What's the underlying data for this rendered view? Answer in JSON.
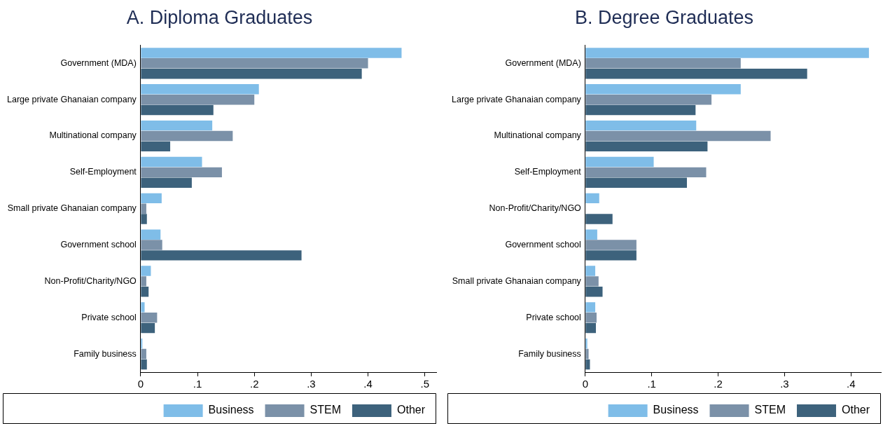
{
  "chart_data": [
    {
      "type": "bar",
      "title": "A. Diploma Graduates",
      "orientation": "horizontal",
      "legend": "bottom",
      "grid": false,
      "categories": [
        "Government (MDA)",
        "Large private Ghanaian company",
        "Multinational company",
        "Self-Employment",
        "Small private Ghanaian company",
        "Government school",
        "Non-Profit/Charity/NGO",
        "Private school",
        "Family business"
      ],
      "series": [
        {
          "name": "Business",
          "color": "#7fbde8",
          "values": [
            0.459,
            0.208,
            0.126,
            0.108,
            0.037,
            0.035,
            0.018,
            0.007,
            0.003
          ]
        },
        {
          "name": "STEM",
          "color": "#7b91a8",
          "values": [
            0.4,
            0.2,
            0.162,
            0.143,
            0.01,
            0.038,
            0.01,
            0.029,
            0.01
          ]
        },
        {
          "name": "Other",
          "color": "#3d627c",
          "values": [
            0.389,
            0.128,
            0.052,
            0.09,
            0.011,
            0.283,
            0.014,
            0.025,
            0.011
          ]
        }
      ],
      "xlim": [
        0,
        0.52
      ],
      "xticks": [
        0,
        {
          "value": 0.1,
          "label": ".1"
        },
        {
          "value": 0.2,
          "label": ".2"
        },
        {
          "value": 0.3,
          "label": ".3"
        },
        {
          "value": 0.4,
          "label": ".4"
        },
        {
          "value": 0.5,
          "label": ".5"
        }
      ]
    },
    {
      "type": "bar",
      "title": "B. Degree Graduates",
      "orientation": "horizontal",
      "legend": "bottom",
      "grid": false,
      "categories": [
        "Government (MDA)",
        "Large private Ghanaian company",
        "Multinational company",
        "Self-Employment",
        "Non-Profit/Charity/NGO",
        "Government school",
        "Small private Ghanaian company",
        "Private school",
        "Family business"
      ],
      "series": [
        {
          "name": "Business",
          "color": "#7fbde8",
          "values": [
            0.427,
            0.234,
            0.167,
            0.103,
            0.021,
            0.018,
            0.015,
            0.015,
            0.003
          ]
        },
        {
          "name": "STEM",
          "color": "#7b91a8",
          "values": [
            0.234,
            0.19,
            0.279,
            0.182,
            0,
            0.077,
            0.02,
            0.017,
            0.005
          ]
        },
        {
          "name": "Other",
          "color": "#3d627c",
          "values": [
            0.334,
            0.166,
            0.184,
            0.153,
            0.041,
            0.077,
            0.026,
            0.016,
            0.007
          ]
        }
      ],
      "xlim": [
        0,
        0.445
      ],
      "xticks": [
        0,
        {
          "value": 0.1,
          "label": ".1"
        },
        {
          "value": 0.2,
          "label": ".2"
        },
        {
          "value": 0.3,
          "label": ".3"
        },
        {
          "value": 0.4,
          "label": ".4"
        }
      ]
    }
  ]
}
